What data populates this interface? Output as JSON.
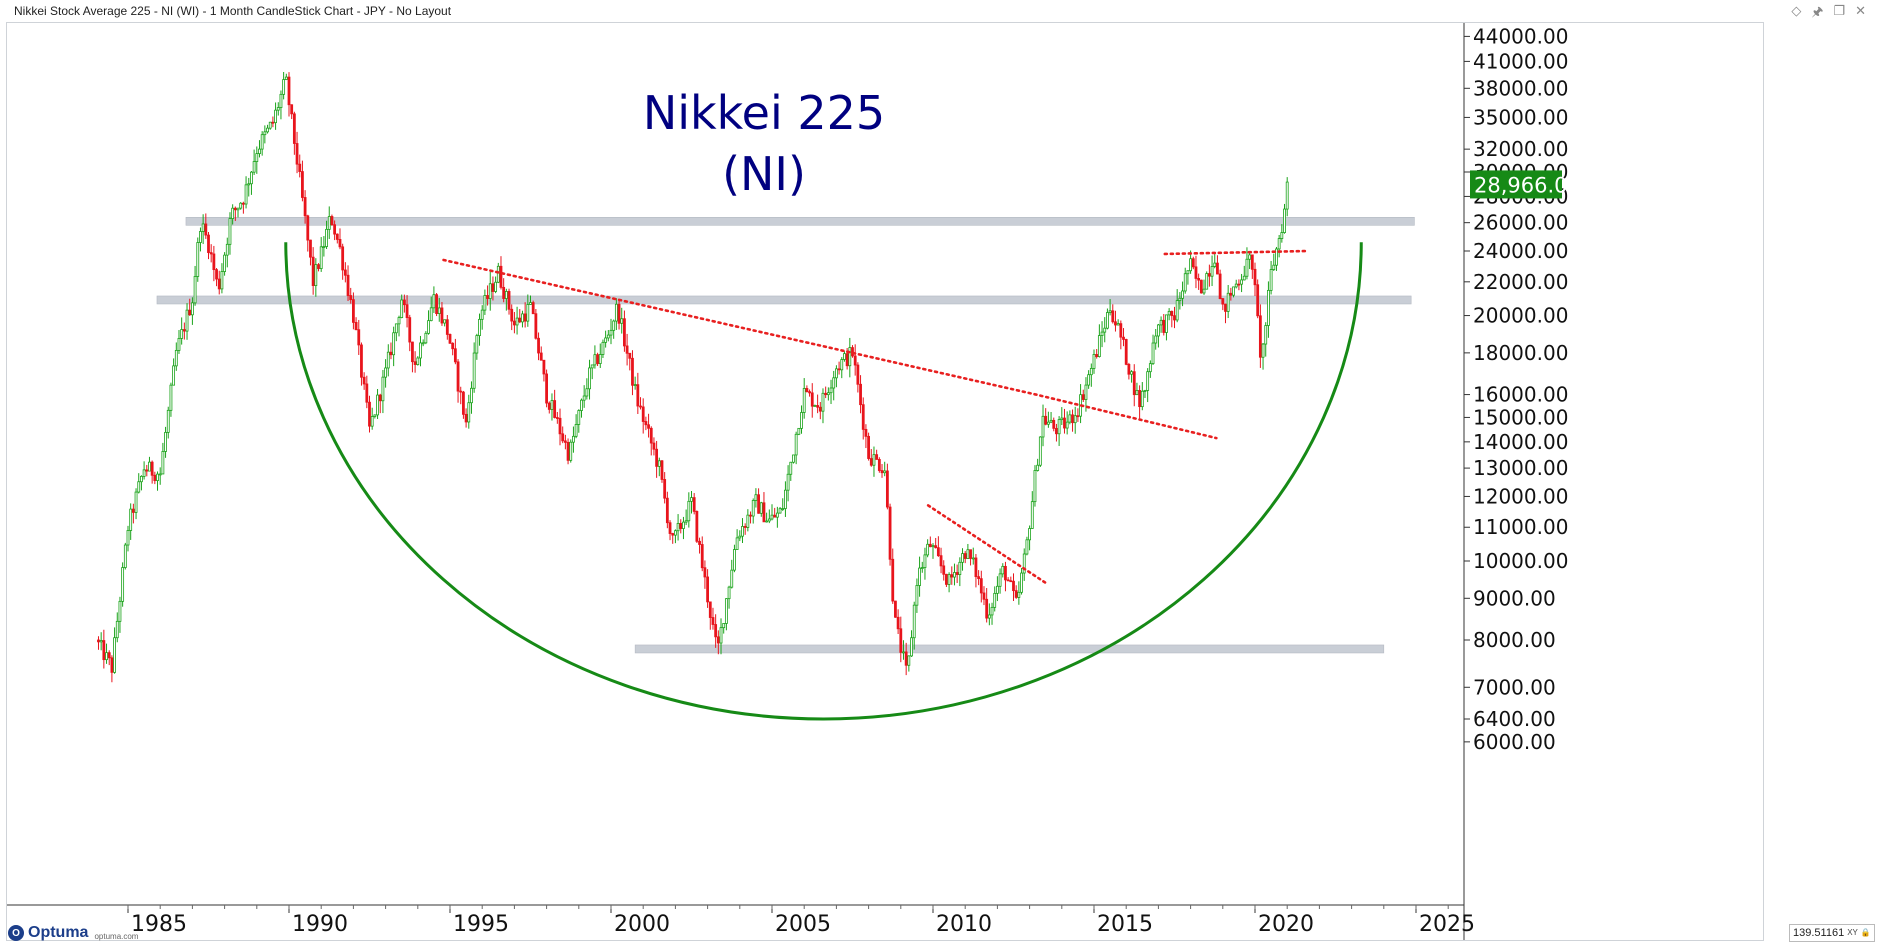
{
  "window": {
    "title": "Nikkei Stock Average 225 - NI (WI) - 1 Month CandleStick Chart - JPY - No Layout",
    "icons": [
      "diamond-icon",
      "pin-icon",
      "restore-icon",
      "close-icon"
    ]
  },
  "footer": {
    "brand": "Optuma",
    "url": "optuma.com",
    "readout": "139.51161",
    "readout_tag": "XY"
  },
  "colors": {
    "up": "#1aa31a",
    "down": "#e8141c",
    "title": "#000080",
    "arc": "#168a16",
    "trend": "#e82020",
    "band": "#c9ced6",
    "price_tag": "#168a16"
  },
  "chart_data": {
    "type": "candlestick",
    "title": "Nikkei 225",
    "subtitle": "(NI)",
    "scale": "log",
    "ylim": [
      5900,
      46000
    ],
    "xlim": [
      1983.9,
      2026.9
    ],
    "y_ticks": [
      "44000.00",
      "41000.00",
      "38000.00",
      "35000.00",
      "32000.00",
      "30000.00",
      "28000.00",
      "26000.00",
      "24000.00",
      "22000.00",
      "20000.00",
      "18000.00",
      "16000.00",
      "15000.00",
      "14000.00",
      "13000.00",
      "12000.00",
      "11000.00",
      "10000.00",
      "9000.00",
      "8000.00",
      "7000.00",
      "6400.00",
      "6000.00"
    ],
    "x_ticks": [
      "1985",
      "1990",
      "1995",
      "2000",
      "2005",
      "2010",
      "2015",
      "2020",
      "2025"
    ],
    "last_price": "28,966.01",
    "anchors": [
      [
        1984.0,
        8000
      ],
      [
        1984.5,
        7400
      ],
      [
        1985.0,
        11000
      ],
      [
        1985.5,
        13000
      ],
      [
        1986.0,
        12800
      ],
      [
        1986.5,
        18000
      ],
      [
        1987.0,
        21000
      ],
      [
        1987.25,
        26000
      ],
      [
        1987.5,
        24500
      ],
      [
        1987.8,
        21500
      ],
      [
        1988.2,
        26500
      ],
      [
        1988.6,
        28000
      ],
      [
        1989.0,
        32000
      ],
      [
        1989.5,
        34500
      ],
      [
        1989.9,
        38900
      ],
      [
        1990.3,
        30000
      ],
      [
        1990.75,
        22000
      ],
      [
        1991.0,
        23800
      ],
      [
        1991.3,
        26500
      ],
      [
        1991.6,
        24000
      ],
      [
        1992.0,
        20000
      ],
      [
        1992.5,
        14500
      ],
      [
        1993.0,
        17000
      ],
      [
        1993.5,
        21000
      ],
      [
        1993.9,
        17400
      ],
      [
        1994.5,
        21000
      ],
      [
        1994.95,
        19000
      ],
      [
        1995.5,
        14700
      ],
      [
        1995.9,
        19900
      ],
      [
        1996.5,
        22600
      ],
      [
        1997.0,
        19500
      ],
      [
        1997.5,
        20500
      ],
      [
        1998.0,
        16000
      ],
      [
        1998.7,
        13500
      ],
      [
        1999.3,
        16800
      ],
      [
        1999.9,
        18900
      ],
      [
        2000.2,
        20500
      ],
      [
        2000.8,
        15800
      ],
      [
        2001.5,
        13000
      ],
      [
        2001.9,
        10500
      ],
      [
        2002.5,
        11800
      ],
      [
        2003.3,
        7700
      ],
      [
        2003.9,
        10700
      ],
      [
        2004.5,
        11800
      ],
      [
        2004.9,
        11200
      ],
      [
        2005.3,
        11500
      ],
      [
        2005.99,
        16100
      ],
      [
        2006.5,
        15500
      ],
      [
        2007.0,
        17300
      ],
      [
        2007.5,
        18000
      ],
      [
        2008.0,
        13500
      ],
      [
        2008.5,
        13000
      ],
      [
        2008.8,
        8500
      ],
      [
        2009.2,
        7200
      ],
      [
        2009.5,
        9500
      ],
      [
        2009.9,
        10500
      ],
      [
        2010.5,
        9400
      ],
      [
        2011.0,
        10300
      ],
      [
        2011.3,
        9800
      ],
      [
        2011.7,
        8600
      ],
      [
        2012.2,
        9800
      ],
      [
        2012.6,
        8800
      ],
      [
        2012.9,
        10400
      ],
      [
        2013.4,
        15000
      ],
      [
        2013.8,
        14500
      ],
      [
        2014.2,
        14800
      ],
      [
        2014.5,
        15400
      ],
      [
        2014.95,
        17400
      ],
      [
        2015.5,
        20500
      ],
      [
        2015.8,
        19000
      ],
      [
        2016.4,
        15600
      ],
      [
        2016.6,
        16400
      ],
      [
        2016.9,
        19200
      ],
      [
        2017.5,
        20000
      ],
      [
        2017.9,
        22700
      ],
      [
        2018.0,
        23000
      ],
      [
        2018.3,
        21500
      ],
      [
        2018.8,
        24000
      ],
      [
        2018.95,
        20000
      ],
      [
        2019.3,
        21500
      ],
      [
        2019.9,
        23600
      ],
      [
        2020.2,
        17500
      ],
      [
        2020.5,
        22500
      ],
      [
        2020.9,
        26500
      ],
      [
        2021.0,
        28966
      ]
    ],
    "horizontal_bands": [
      {
        "y": 26100,
        "from": 1986.8,
        "to": 2024.95
      },
      {
        "y": 20900,
        "from": 1985.9,
        "to": 2024.85
      },
      {
        "y": 7800,
        "from": 2000.75,
        "to": 2024.0
      }
    ],
    "trendlines": [
      {
        "points": [
          [
            1994.8,
            23400
          ],
          [
            2013.2,
            16000
          ],
          [
            2018.8,
            14150
          ]
        ],
        "style": "dotted"
      },
      {
        "points": [
          [
            2009.85,
            11700
          ],
          [
            2013.5,
            9400
          ]
        ],
        "style": "dotted"
      },
      {
        "points": [
          [
            2017.2,
            23800
          ],
          [
            2021.6,
            24000
          ]
        ],
        "style": "dotted"
      }
    ],
    "rounding_bottom": {
      "left": [
        1989.9,
        24600
      ],
      "right": [
        2023.3,
        24600
      ],
      "bottom": [
        2006.3,
        6400
      ]
    }
  }
}
